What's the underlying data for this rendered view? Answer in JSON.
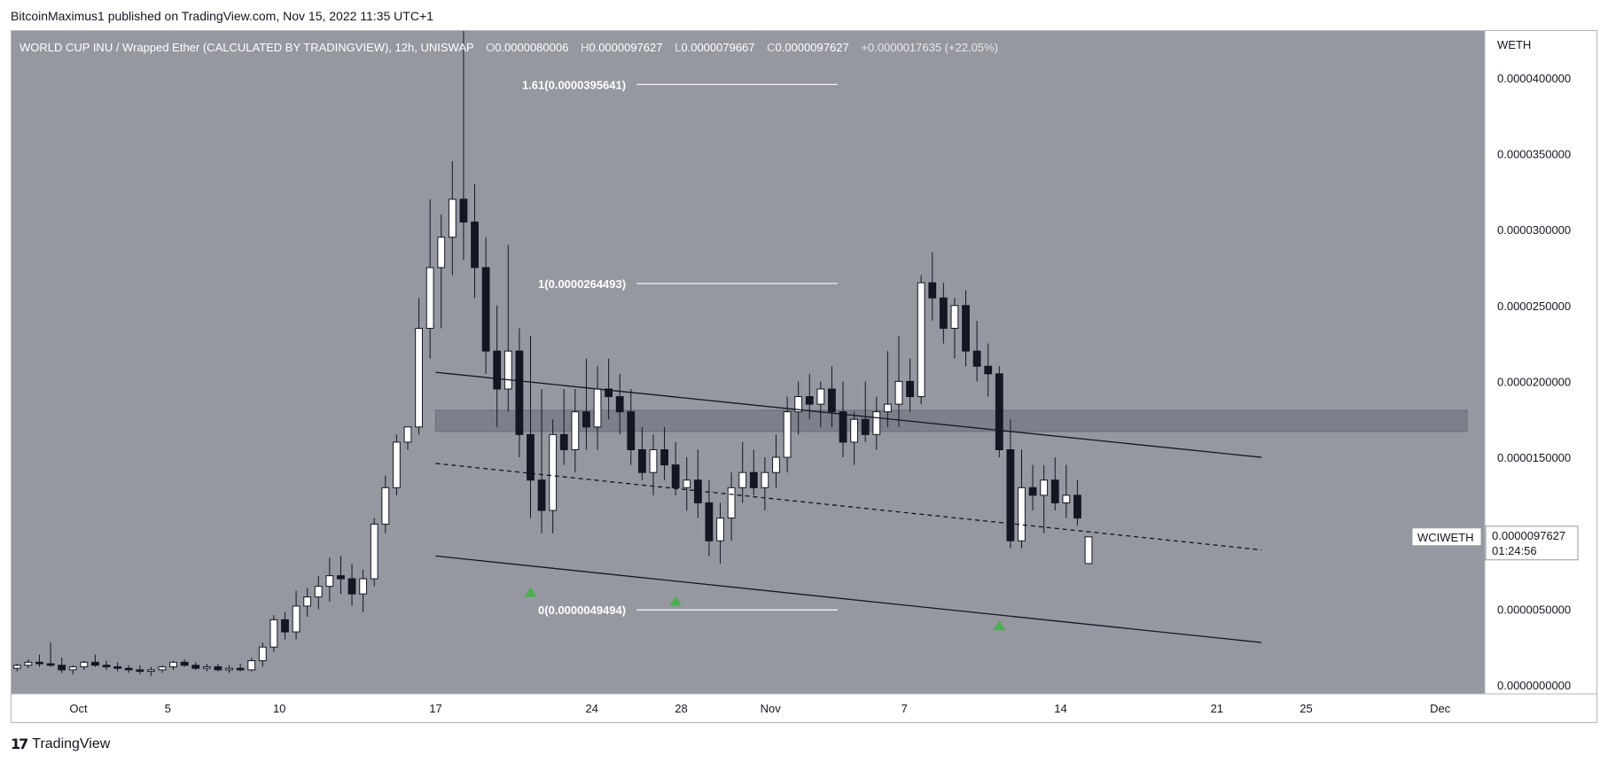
{
  "attribution": "BitcoinMaximus1 published on TradingView.com, Nov 15, 2022 11:35 UTC+1",
  "brand": "TradingView",
  "brand_icon": "tradingview-logo-icon",
  "legend": {
    "symbol": "WORLD CUP INU / Wrapped Ether (CALCULATED BY TRADINGVIEW), 12h, UNISWAP",
    "o_label": "O",
    "o": "0.0000080006",
    "h_label": "H",
    "h": "0.0000097627",
    "l_label": "L",
    "l": "0.0000079667",
    "c_label": "C",
    "c": "0.0000097627",
    "change": "+0.0000017635 (+22.05%)"
  },
  "colors": {
    "background": "#9598a1",
    "candle_up": "#ffffff",
    "candle_down": "#131722",
    "marker": "#4caf50",
    "resistance_zone": "#787b86"
  },
  "chart_data": {
    "type": "candlestick",
    "interval": "12h",
    "currency_label": "WETH",
    "ylim": [
      0,
      4.25e-05
    ],
    "y_ticks": [
      {
        "value": 0.0,
        "label": "0.0000000000"
      },
      {
        "value": 5e-06,
        "label": "0.0000050000"
      },
      {
        "value": 1e-05,
        "label": "0.0000100000"
      },
      {
        "value": 1.5e-05,
        "label": "0.0000150000"
      },
      {
        "value": 2e-05,
        "label": "0.0000200000"
      },
      {
        "value": 2.5e-05,
        "label": "0.0000250000"
      },
      {
        "value": 3e-05,
        "label": "0.0000300000"
      },
      {
        "value": 3.5e-05,
        "label": "0.0000350000"
      },
      {
        "value": 4e-05,
        "label": "0.0000400000"
      }
    ],
    "x_start_date": "2022-09-28",
    "x_end_date": "2022-12-03",
    "x_ticks": [
      {
        "date": "2022-10-01",
        "label": "Oct"
      },
      {
        "date": "2022-10-05",
        "label": "5"
      },
      {
        "date": "2022-10-10",
        "label": "10"
      },
      {
        "date": "2022-10-17",
        "label": "17"
      },
      {
        "date": "2022-10-24",
        "label": "24"
      },
      {
        "date": "2022-10-28",
        "label": "28"
      },
      {
        "date": "2022-11-01",
        "label": "Nov"
      },
      {
        "date": "2022-11-07",
        "label": "7"
      },
      {
        "date": "2022-11-14",
        "label": "14"
      },
      {
        "date": "2022-11-21",
        "label": "21"
      },
      {
        "date": "2022-11-25",
        "label": "25"
      },
      {
        "date": "2022-12-01",
        "label": "Dec"
      }
    ],
    "candles": [
      {
        "t": "2022-09-28T00:00",
        "o": 1.1e-06,
        "h": 1.4e-06,
        "l": 9e-07,
        "c": 1.3e-06
      },
      {
        "t": "2022-09-28T12:00",
        "o": 1.3e-06,
        "h": 1.7e-06,
        "l": 1.1e-06,
        "c": 1.5e-06
      },
      {
        "t": "2022-09-29T00:00",
        "o": 1.5e-06,
        "h": 2e-06,
        "l": 1.2e-06,
        "c": 1.4e-06
      },
      {
        "t": "2022-09-29T12:00",
        "o": 1.4e-06,
        "h": 2.8e-06,
        "l": 1.2e-06,
        "c": 1.3e-06
      },
      {
        "t": "2022-09-30T00:00",
        "o": 1.3e-06,
        "h": 1.8e-06,
        "l": 8e-07,
        "c": 1e-06
      },
      {
        "t": "2022-09-30T12:00",
        "o": 1e-06,
        "h": 1.3e-06,
        "l": 7e-07,
        "c": 1.2e-06
      },
      {
        "t": "2022-10-01T00:00",
        "o": 1.2e-06,
        "h": 1.6e-06,
        "l": 1e-06,
        "c": 1.5e-06
      },
      {
        "t": "2022-10-01T12:00",
        "o": 1.5e-06,
        "h": 2e-06,
        "l": 1.2e-06,
        "c": 1.3e-06
      },
      {
        "t": "2022-10-02T00:00",
        "o": 1.3e-06,
        "h": 1.6e-06,
        "l": 1e-06,
        "c": 1.2e-06
      },
      {
        "t": "2022-10-02T12:00",
        "o": 1.2e-06,
        "h": 1.5e-06,
        "l": 9e-07,
        "c": 1.1e-06
      },
      {
        "t": "2022-10-03T00:00",
        "o": 1.1e-06,
        "h": 1.3e-06,
        "l": 8e-07,
        "c": 1e-06
      },
      {
        "t": "2022-10-03T12:00",
        "o": 1e-06,
        "h": 1.3e-06,
        "l": 7e-07,
        "c": 9e-07
      },
      {
        "t": "2022-10-04T00:00",
        "o": 9e-07,
        "h": 1.2e-06,
        "l": 6e-07,
        "c": 1e-06
      },
      {
        "t": "2022-10-04T12:00",
        "o": 1e-06,
        "h": 1.3e-06,
        "l": 8e-07,
        "c": 1.2e-06
      },
      {
        "t": "2022-10-05T00:00",
        "o": 1.2e-06,
        "h": 1.6e-06,
        "l": 1e-06,
        "c": 1.5e-06
      },
      {
        "t": "2022-10-05T12:00",
        "o": 1.5e-06,
        "h": 1.7e-06,
        "l": 1.2e-06,
        "c": 1.3e-06
      },
      {
        "t": "2022-10-06T00:00",
        "o": 1.3e-06,
        "h": 1.5e-06,
        "l": 1e-06,
        "c": 1.1e-06
      },
      {
        "t": "2022-10-06T12:00",
        "o": 1.1e-06,
        "h": 1.4e-06,
        "l": 9e-07,
        "c": 1.2e-06
      },
      {
        "t": "2022-10-07T00:00",
        "o": 1.2e-06,
        "h": 1.4e-06,
        "l": 9e-07,
        "c": 1e-06
      },
      {
        "t": "2022-10-07T12:00",
        "o": 1e-06,
        "h": 1.3e-06,
        "l": 8e-07,
        "c": 1.1e-06
      },
      {
        "t": "2022-10-08T00:00",
        "o": 1.1e-06,
        "h": 1.4e-06,
        "l": 9e-07,
        "c": 1e-06
      },
      {
        "t": "2022-10-08T12:00",
        "o": 1e-06,
        "h": 1.8e-06,
        "l": 9e-07,
        "c": 1.6e-06
      },
      {
        "t": "2022-10-09T00:00",
        "o": 1.6e-06,
        "h": 2.8e-06,
        "l": 1.2e-06,
        "c": 2.5e-06
      },
      {
        "t": "2022-10-09T12:00",
        "o": 2.5e-06,
        "h": 4.6e-06,
        "l": 2.2e-06,
        "c": 4.3e-06
      },
      {
        "t": "2022-10-10T00:00",
        "o": 4.3e-06,
        "h": 4.8e-06,
        "l": 3e-06,
        "c": 3.5e-06
      },
      {
        "t": "2022-10-10T12:00",
        "o": 3.5e-06,
        "h": 6.2e-06,
        "l": 3e-06,
        "c": 5.2e-06
      },
      {
        "t": "2022-10-11T00:00",
        "o": 5.2e-06,
        "h": 6.4e-06,
        "l": 4.5e-06,
        "c": 5.8e-06
      },
      {
        "t": "2022-10-11T12:00",
        "o": 5.8e-06,
        "h": 7.2e-06,
        "l": 5e-06,
        "c": 6.5e-06
      },
      {
        "t": "2022-10-12T00:00",
        "o": 6.5e-06,
        "h": 8.4e-06,
        "l": 5.5e-06,
        "c": 7.2e-06
      },
      {
        "t": "2022-10-12T12:00",
        "o": 7.2e-06,
        "h": 8.5e-06,
        "l": 6e-06,
        "c": 7e-06
      },
      {
        "t": "2022-10-13T00:00",
        "o": 7e-06,
        "h": 8e-06,
        "l": 5.2e-06,
        "c": 6e-06
      },
      {
        "t": "2022-10-13T12:00",
        "o": 6e-06,
        "h": 7.6e-06,
        "l": 4.8e-06,
        "c": 7e-06
      },
      {
        "t": "2022-10-14T00:00",
        "o": 7e-06,
        "h": 1.1e-05,
        "l": 6.5e-06,
        "c": 1.06e-05
      },
      {
        "t": "2022-10-14T12:00",
        "o": 1.06e-05,
        "h": 1.38e-05,
        "l": 1e-05,
        "c": 1.3e-05
      },
      {
        "t": "2022-10-15T00:00",
        "o": 1.3e-05,
        "h": 1.65e-05,
        "l": 1.25e-05,
        "c": 1.6e-05
      },
      {
        "t": "2022-10-15T12:00",
        "o": 1.6e-05,
        "h": 1.7e-05,
        "l": 1.55e-05,
        "c": 1.7e-05
      },
      {
        "t": "2022-10-16T00:00",
        "o": 1.7e-05,
        "h": 2.55e-05,
        "l": 1.65e-05,
        "c": 2.35e-05
      },
      {
        "t": "2022-10-16T12:00",
        "o": 2.35e-05,
        "h": 3.2e-05,
        "l": 2.15e-05,
        "c": 2.75e-05
      },
      {
        "t": "2022-10-17T00:00",
        "o": 2.75e-05,
        "h": 3.1e-05,
        "l": 2.35e-05,
        "c": 2.95e-05
      },
      {
        "t": "2022-10-17T12:00",
        "o": 2.95e-05,
        "h": 3.45e-05,
        "l": 2.7e-05,
        "c": 3.2e-05
      },
      {
        "t": "2022-10-18T00:00",
        "o": 3.2e-05,
        "h": 4.7e-05,
        "l": 2.8e-05,
        "c": 3.05e-05
      },
      {
        "t": "2022-10-18T12:00",
        "o": 3.05e-05,
        "h": 3.3e-05,
        "l": 2.55e-05,
        "c": 2.75e-05
      },
      {
        "t": "2022-10-19T00:00",
        "o": 2.75e-05,
        "h": 2.95e-05,
        "l": 2.05e-05,
        "c": 2.2e-05
      },
      {
        "t": "2022-10-19T12:00",
        "o": 2.2e-05,
        "h": 2.5e-05,
        "l": 1.7e-05,
        "c": 1.95e-05
      },
      {
        "t": "2022-10-20T00:00",
        "o": 1.95e-05,
        "h": 2.9e-05,
        "l": 1.8e-05,
        "c": 2.2e-05
      },
      {
        "t": "2022-10-20T12:00",
        "o": 2.2e-05,
        "h": 2.35e-05,
        "l": 1.5e-05,
        "c": 1.65e-05
      },
      {
        "t": "2022-10-21T00:00",
        "o": 1.65e-05,
        "h": 2.3e-05,
        "l": 1.1e-05,
        "c": 1.35e-05
      },
      {
        "t": "2022-10-21T12:00",
        "o": 1.35e-05,
        "h": 1.95e-05,
        "l": 1e-05,
        "c": 1.15e-05
      },
      {
        "t": "2022-10-22T00:00",
        "o": 1.15e-05,
        "h": 1.75e-05,
        "l": 1e-05,
        "c": 1.65e-05
      },
      {
        "t": "2022-10-22T12:00",
        "o": 1.65e-05,
        "h": 1.95e-05,
        "l": 1.45e-05,
        "c": 1.55e-05
      },
      {
        "t": "2022-10-23T00:00",
        "o": 1.55e-05,
        "h": 1.95e-05,
        "l": 1.4e-05,
        "c": 1.8e-05
      },
      {
        "t": "2022-10-23T12:00",
        "o": 1.8e-05,
        "h": 2.15e-05,
        "l": 1.55e-05,
        "c": 1.7e-05
      },
      {
        "t": "2022-10-24T00:00",
        "o": 1.7e-05,
        "h": 2.1e-05,
        "l": 1.55e-05,
        "c": 1.95e-05
      },
      {
        "t": "2022-10-24T12:00",
        "o": 1.95e-05,
        "h": 2.15e-05,
        "l": 1.75e-05,
        "c": 1.9e-05
      },
      {
        "t": "2022-10-25T00:00",
        "o": 1.9e-05,
        "h": 2.05e-05,
        "l": 1.65e-05,
        "c": 1.8e-05
      },
      {
        "t": "2022-10-25T12:00",
        "o": 1.8e-05,
        "h": 1.95e-05,
        "l": 1.45e-05,
        "c": 1.55e-05
      },
      {
        "t": "2022-10-26T00:00",
        "o": 1.55e-05,
        "h": 1.7e-05,
        "l": 1.35e-05,
        "c": 1.4e-05
      },
      {
        "t": "2022-10-26T12:00",
        "o": 1.4e-05,
        "h": 1.65e-05,
        "l": 1.25e-05,
        "c": 1.55e-05
      },
      {
        "t": "2022-10-27T00:00",
        "o": 1.55e-05,
        "h": 1.7e-05,
        "l": 1.35e-05,
        "c": 1.45e-05
      },
      {
        "t": "2022-10-27T12:00",
        "o": 1.45e-05,
        "h": 1.6e-05,
        "l": 1.25e-05,
        "c": 1.3e-05
      },
      {
        "t": "2022-10-28T00:00",
        "o": 1.3e-05,
        "h": 1.5e-05,
        "l": 1.15e-05,
        "c": 1.35e-05
      },
      {
        "t": "2022-10-28T12:00",
        "o": 1.35e-05,
        "h": 1.55e-05,
        "l": 1.1e-05,
        "c": 1.2e-05
      },
      {
        "t": "2022-10-29T00:00",
        "o": 1.2e-05,
        "h": 1.35e-05,
        "l": 8.5e-06,
        "c": 9.5e-06
      },
      {
        "t": "2022-10-29T12:00",
        "o": 9.5e-06,
        "h": 1.2e-05,
        "l": 8e-06,
        "c": 1.1e-05
      },
      {
        "t": "2022-10-30T00:00",
        "o": 1.1e-05,
        "h": 1.4e-05,
        "l": 9.5e-06,
        "c": 1.3e-05
      },
      {
        "t": "2022-10-30T12:00",
        "o": 1.3e-05,
        "h": 1.6e-05,
        "l": 1.2e-05,
        "c": 1.4e-05
      },
      {
        "t": "2022-10-31T00:00",
        "o": 1.4e-05,
        "h": 1.55e-05,
        "l": 1.25e-05,
        "c": 1.3e-05
      },
      {
        "t": "2022-10-31T12:00",
        "o": 1.3e-05,
        "h": 1.5e-05,
        "l": 1.15e-05,
        "c": 1.4e-05
      },
      {
        "t": "2022-11-01T00:00",
        "o": 1.4e-05,
        "h": 1.65e-05,
        "l": 1.3e-05,
        "c": 1.5e-05
      },
      {
        "t": "2022-11-01T12:00",
        "o": 1.5e-05,
        "h": 1.9e-05,
        "l": 1.4e-05,
        "c": 1.8e-05
      },
      {
        "t": "2022-11-02T00:00",
        "o": 1.8e-05,
        "h": 2e-05,
        "l": 1.65e-05,
        "c": 1.9e-05
      },
      {
        "t": "2022-11-02T12:00",
        "o": 1.9e-05,
        "h": 2.05e-05,
        "l": 1.75e-05,
        "c": 1.85e-05
      },
      {
        "t": "2022-11-03T00:00",
        "o": 1.85e-05,
        "h": 2e-05,
        "l": 1.7e-05,
        "c": 1.95e-05
      },
      {
        "t": "2022-11-03T12:00",
        "o": 1.95e-05,
        "h": 2.1e-05,
        "l": 1.7e-05,
        "c": 1.8e-05
      },
      {
        "t": "2022-11-04T00:00",
        "o": 1.8e-05,
        "h": 2e-05,
        "l": 1.5e-05,
        "c": 1.6e-05
      },
      {
        "t": "2022-11-04T12:00",
        "o": 1.6e-05,
        "h": 1.8e-05,
        "l": 1.45e-05,
        "c": 1.75e-05
      },
      {
        "t": "2022-11-05T00:00",
        "o": 1.75e-05,
        "h": 2e-05,
        "l": 1.6e-05,
        "c": 1.65e-05
      },
      {
        "t": "2022-11-05T12:00",
        "o": 1.65e-05,
        "h": 1.9e-05,
        "l": 1.55e-05,
        "c": 1.8e-05
      },
      {
        "t": "2022-11-06T00:00",
        "o": 1.8e-05,
        "h": 2.2e-05,
        "l": 1.7e-05,
        "c": 1.85e-05
      },
      {
        "t": "2022-11-06T12:00",
        "o": 1.85e-05,
        "h": 2.3e-05,
        "l": 1.7e-05,
        "c": 2e-05
      },
      {
        "t": "2022-11-07T00:00",
        "o": 2e-05,
        "h": 2.15e-05,
        "l": 1.8e-05,
        "c": 1.9e-05
      },
      {
        "t": "2022-11-07T12:00",
        "o": 1.9e-05,
        "h": 2.7e-05,
        "l": 1.85e-05,
        "c": 2.65e-05
      },
      {
        "t": "2022-11-08T00:00",
        "o": 2.65e-05,
        "h": 2.85e-05,
        "l": 2.4e-05,
        "c": 2.55e-05
      },
      {
        "t": "2022-11-08T12:00",
        "o": 2.55e-05,
        "h": 2.65e-05,
        "l": 2.25e-05,
        "c": 2.35e-05
      },
      {
        "t": "2022-11-09T00:00",
        "o": 2.35e-05,
        "h": 2.55e-05,
        "l": 2.15e-05,
        "c": 2.5e-05
      },
      {
        "t": "2022-11-09T12:00",
        "o": 2.5e-05,
        "h": 2.6e-05,
        "l": 2.1e-05,
        "c": 2.2e-05
      },
      {
        "t": "2022-11-10T00:00",
        "o": 2.2e-05,
        "h": 2.4e-05,
        "l": 2e-05,
        "c": 2.1e-05
      },
      {
        "t": "2022-11-10T12:00",
        "o": 2.1e-05,
        "h": 2.25e-05,
        "l": 1.9e-05,
        "c": 2.05e-05
      },
      {
        "t": "2022-11-11T00:00",
        "o": 2.05e-05,
        "h": 2.1e-05,
        "l": 1.5e-05,
        "c": 1.55e-05
      },
      {
        "t": "2022-11-11T12:00",
        "o": 1.55e-05,
        "h": 1.75e-05,
        "l": 9e-06,
        "c": 9.5e-06
      },
      {
        "t": "2022-11-12T00:00",
        "o": 9.5e-06,
        "h": 1.55e-05,
        "l": 9e-06,
        "c": 1.3e-05
      },
      {
        "t": "2022-11-12T12:00",
        "o": 1.3e-05,
        "h": 1.45e-05,
        "l": 1.15e-05,
        "c": 1.25e-05
      },
      {
        "t": "2022-11-13T00:00",
        "o": 1.25e-05,
        "h": 1.45e-05,
        "l": 1e-05,
        "c": 1.35e-05
      },
      {
        "t": "2022-11-13T12:00",
        "o": 1.35e-05,
        "h": 1.5e-05,
        "l": 1.15e-05,
        "c": 1.2e-05
      },
      {
        "t": "2022-11-14T00:00",
        "o": 1.2e-05,
        "h": 1.45e-05,
        "l": 1.1e-05,
        "c": 1.25e-05
      },
      {
        "t": "2022-11-14T12:00",
        "o": 1.25e-05,
        "h": 1.35e-05,
        "l": 1.05e-05,
        "c": 1.1e-05
      },
      {
        "t": "2022-11-15T00:00",
        "o": 8e-06,
        "h": 9.76e-06,
        "l": 7.97e-06,
        "c": 9.76e-06
      }
    ],
    "overlays": {
      "channel_upper": {
        "from": {
          "t": "2022-10-17T00:00",
          "v": 2.06e-05
        },
        "to": {
          "t": "2022-11-23T00:00",
          "v": 1.5e-05
        }
      },
      "channel_lower": {
        "from": {
          "t": "2022-10-17T00:00",
          "v": 8.5e-06
        },
        "to": {
          "t": "2022-11-23T00:00",
          "v": 2.8e-06
        }
      },
      "channel_mid": {
        "from": {
          "t": "2022-10-17T00:00",
          "v": 1.46e-05
        },
        "to": {
          "t": "2022-11-23T00:00",
          "v": 8.9e-06
        }
      },
      "resistance_zone": {
        "from_t": "2022-10-17T00:00",
        "to_t": "2022-12-03T00:00",
        "low": 1.67e-05,
        "high": 1.81e-05
      },
      "fib_levels": [
        {
          "value": 3.95641e-05,
          "label": "1.61(0.0000395641)"
        },
        {
          "value": 2.64493e-05,
          "label": "1(0.0000264493)"
        },
        {
          "value": 4.9494e-06,
          "label": "0(0.0000049494)"
        }
      ],
      "fib_from_t": "2022-10-26T00:00",
      "fib_to_t": "2022-11-04T00:00",
      "markers": [
        {
          "t": "2022-10-21T00:00",
          "v": 6.1e-06
        },
        {
          "t": "2022-10-27T12:00",
          "v": 5.5e-06
        },
        {
          "t": "2022-11-11T00:00",
          "v": 3.9e-06
        }
      ]
    },
    "price_tag": {
      "symbol": "WCIWETH",
      "value": "0.0000097627",
      "countdown": "01:24:56",
      "v": 9.7627e-06
    }
  }
}
